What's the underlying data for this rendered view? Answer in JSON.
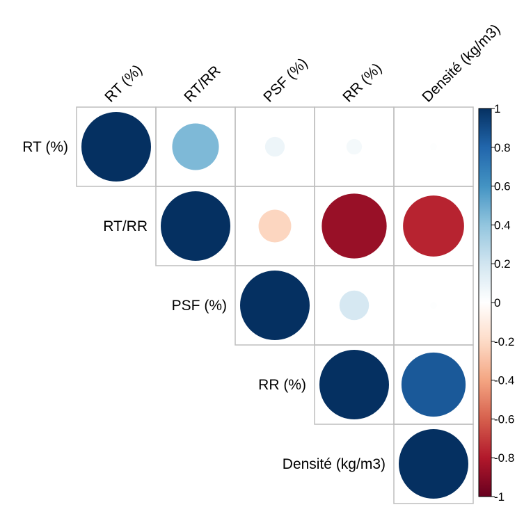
{
  "chart_data": {
    "type": "heatmap",
    "subtype": "correlation-circles-upper-triangle",
    "title": "",
    "variables": [
      "RT (%)",
      "RT/RR",
      "PSF (%)",
      "RR (%)",
      "Densité (kg/m3)"
    ],
    "matrix": [
      [
        1.0,
        0.45,
        0.08,
        0.05,
        0.01
      ],
      [
        0.45,
        1.0,
        -0.22,
        -0.87,
        -0.77
      ],
      [
        0.08,
        -0.22,
        1.0,
        0.18,
        0.01
      ],
      [
        0.05,
        -0.87,
        0.18,
        1.0,
        0.85
      ],
      [
        0.01,
        -0.77,
        0.01,
        0.85,
        1.0
      ]
    ],
    "colorbar": {
      "range": [
        -1,
        1
      ],
      "ticks": [
        "1",
        "0.8",
        "0.6",
        "0.4",
        "0.2",
        "0",
        "-0.2",
        "-0.4",
        "-0.6",
        "-0.8",
        "-1"
      ],
      "palette": [
        "#67001F",
        "#B2182B",
        "#D6604D",
        "#F4A582",
        "#FDDBC7",
        "#FFFFFF",
        "#D1E5F0",
        "#92C5DE",
        "#4393C3",
        "#2166AC",
        "#053061"
      ]
    },
    "grid_color": "#BEBEBE"
  }
}
